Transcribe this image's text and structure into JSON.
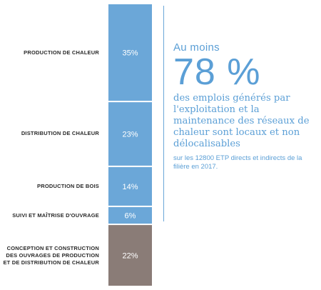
{
  "chart_data": {
    "type": "bar",
    "orientation": "stacked-vertical",
    "categories": [
      "PRODUCTION DE CHALEUR",
      "DISTRIBUTION DE CHALEUR",
      "PRODUCTION DE BOIS",
      "SUIVI ET MAÎTRISE D'OUVRAGE",
      "CONCEPTION ET CONSTRUCTION\nDES OUVRAGES DE PRODUCTION\nET DE DISTRIBUTION DE CHALEUR"
    ],
    "values": [
      35,
      23,
      14,
      6,
      22
    ],
    "value_labels": [
      "35%",
      "23%",
      "14%",
      "6%",
      "22%"
    ],
    "colors": [
      "#6ba7d8",
      "#6ba7d8",
      "#6ba7d8",
      "#6ba7d8",
      "#8a7c77"
    ],
    "title": "",
    "xlabel": "",
    "ylabel": "",
    "grid": false
  },
  "callout": {
    "lead": "Au moins",
    "big": "78 %",
    "body": "des emplois générés par l'exploitation et la maintenance des réseaux de chaleur sont locaux et non délocalisables",
    "note": "sur les 12800 ETP directs et indirects de la filière en 2017.",
    "color": "#5b9fd6"
  }
}
